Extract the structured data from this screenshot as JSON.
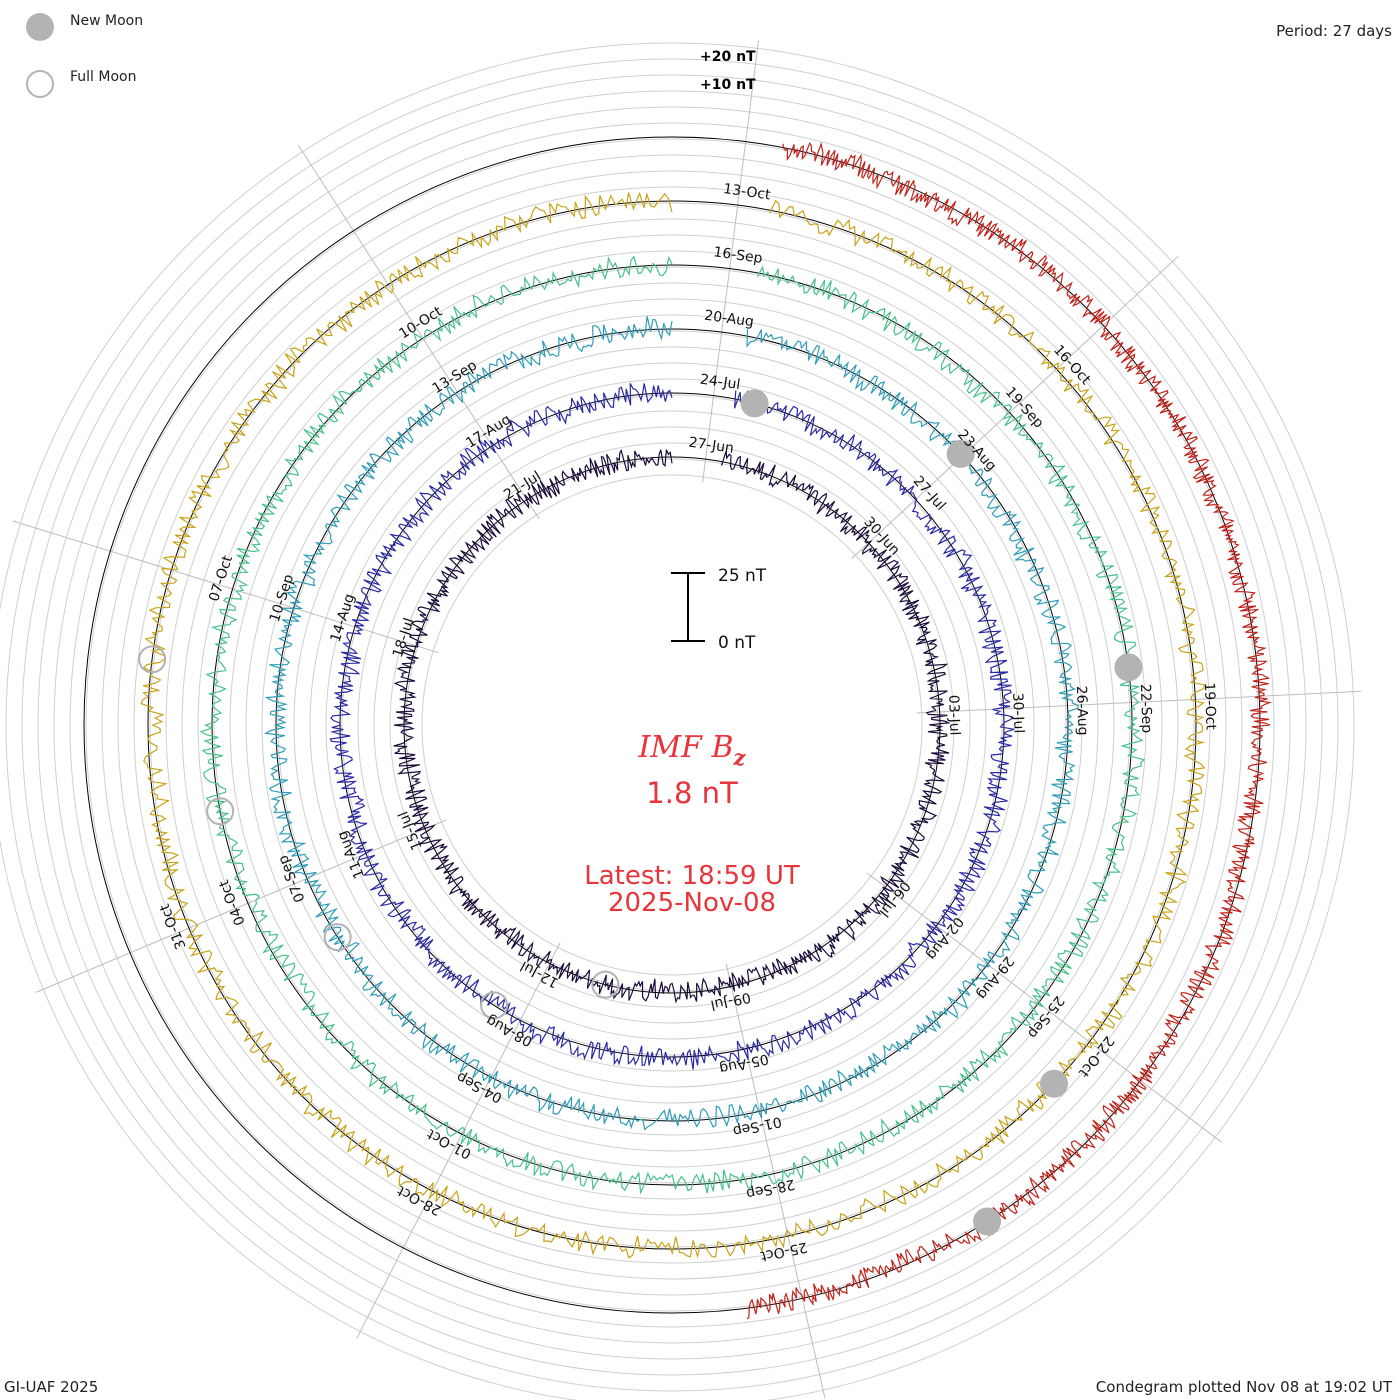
{
  "legend": {
    "new_moon_label": "New Moon",
    "full_moon_label": "Full Moon",
    "new_moon_color": "#b3b3b3",
    "full_moon_color": "#b3b3b3"
  },
  "header": {
    "period_label": "Period: 27 days"
  },
  "footer": {
    "credit": "GI-UAF 2025",
    "plotted": "Condegram plotted Nov 08 at 19:02 UT"
  },
  "chart_data": {
    "type": "condegram",
    "title": "IMF Bz",
    "title_main": "IMF B",
    "title_sub": "z",
    "current_value": "1.8 nT",
    "latest_label": "Latest: 18:59 UT",
    "latest_date": "2025-Nov-08",
    "period_days": 27,
    "units": "nT",
    "scale_bar": {
      "top_label": "25 nT",
      "bottom_label": "0 nT",
      "top_value": 25,
      "bottom_value": 0
    },
    "range_labels": [
      {
        "label": "+20 nT",
        "value": 20
      },
      {
        "label": "+10 nT",
        "value": 10
      }
    ],
    "rotations": [
      {
        "index": 0,
        "color": "#1a0a3a",
        "ticks": [
          "27-Jun",
          "30-Jun",
          "03-Jul",
          "06-Jul",
          "09-Jul",
          "12-Jul",
          "15-Jul",
          "18-Jul",
          "21-Jul"
        ]
      },
      {
        "index": 1,
        "color": "#2a2aa6",
        "ticks": [
          "24-Jul",
          "27-Jul",
          "30-Jul",
          "02-Aug",
          "05-Aug",
          "08-Aug",
          "11-Aug",
          "14-Aug",
          "17-Aug"
        ]
      },
      {
        "index": 2,
        "color": "#2e9db8",
        "ticks": [
          "20-Aug",
          "23-Aug",
          "26-Aug",
          "29-Aug",
          "01-Sep",
          "04-Sep",
          "07-Sep",
          "10-Sep",
          "13-Sep"
        ]
      },
      {
        "index": 3,
        "color": "#46c18c",
        "ticks": [
          "16-Sep",
          "19-Sep",
          "22-Sep",
          "25-Sep",
          "28-Sep",
          "01-Oct",
          "04-Oct",
          "07-Oct",
          "10-Oct"
        ]
      },
      {
        "index": 4,
        "color": "#c9a317",
        "ticks": [
          "13-Oct",
          "16-Oct",
          "19-Oct",
          "22-Oct",
          "25-Oct",
          "28-Oct",
          "31-Oct"
        ]
      },
      {
        "index": 5,
        "color": "#c0221a",
        "ticks": []
      }
    ],
    "new_moons": [
      0.04,
      0.13,
      0.23,
      0.37,
      0.41
    ],
    "full_moons": [
      0.54,
      0.59,
      0.66,
      0.72,
      0.77
    ]
  }
}
